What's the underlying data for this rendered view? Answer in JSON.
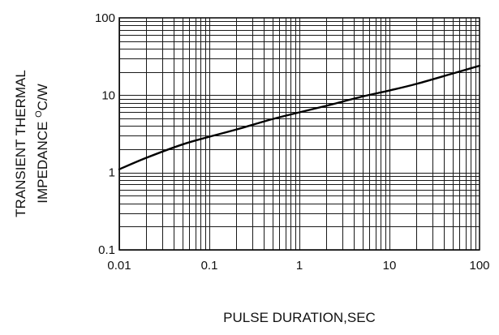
{
  "chart_data": {
    "type": "line",
    "title": "",
    "xlabel": "PULSE DURATION,SEC",
    "ylabel_line1": "TRANSIENT THERMAL",
    "ylabel_line2_prefix": "IMPEDANCE ",
    "ylabel_line2_sup": "O",
    "ylabel_line2_suffix": "C/W",
    "x_scale": "log",
    "y_scale": "log",
    "xlim": [
      0.01,
      100
    ],
    "ylim": [
      0.1,
      100
    ],
    "grid": true,
    "x_tick_labels": [
      "0.01",
      "0.1",
      "1",
      "10",
      "100"
    ],
    "y_tick_labels": [
      "0.1",
      "1",
      "10",
      "100"
    ],
    "line_color": "#000000",
    "series": [
      {
        "x": [
          0.01,
          0.02,
          0.05,
          0.1,
          0.2,
          0.5,
          1,
          2,
          5,
          10,
          20,
          50,
          100
        ],
        "y": [
          1.1,
          1.55,
          2.3,
          2.9,
          3.6,
          4.9,
          6.0,
          7.3,
          9.6,
          11.5,
          14.0,
          19.0,
          24.0
        ]
      }
    ]
  }
}
